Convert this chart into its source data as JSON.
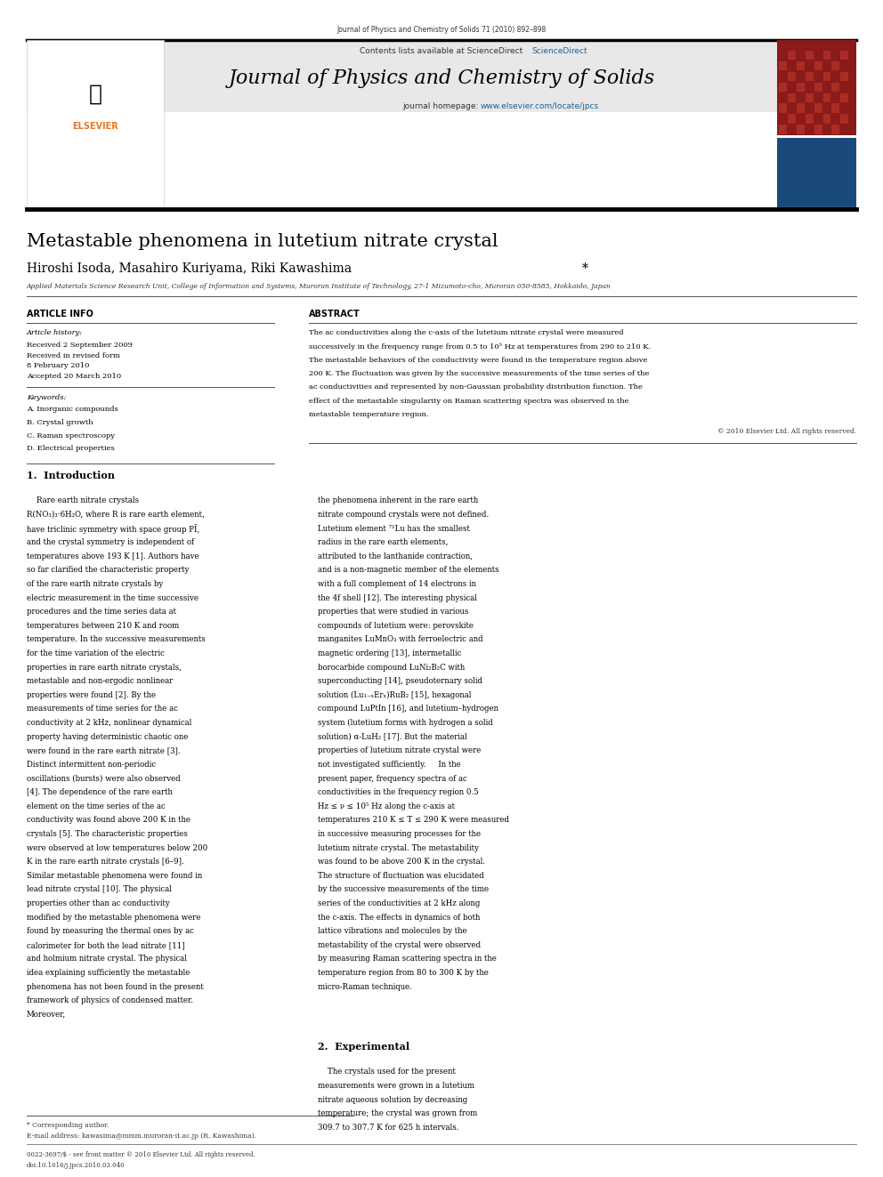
{
  "page_width": 9.92,
  "page_height": 13.23,
  "bg_color": "#ffffff",
  "top_journal_ref": "Journal of Physics and Chemistry of Solids 71 (2010) 892–898",
  "header_bg": "#e8e8e8",
  "header_contents": "Contents lists available at ScienceDirect",
  "sciencedirect_color": "#1a6496",
  "journal_title": "Journal of Physics and Chemistry of Solids",
  "journal_homepage": "journal homepage: www.elsevier.com/locate/jpcs",
  "homepage_color": "#1a6496",
  "divider_color": "#000000",
  "article_title": "Metastable phenomena in lutetium nitrate crystal",
  "authors": "Hiroshi Isoda, Masahiro Kuriyama, Riki Kawashima*",
  "affiliation": "Applied Materials Science Research Unit, College of Information and Systems, Muroran Institute of Technology, 27-1 Mizumoto-cho, Muroran 050-8585, Hokkaido, Japan",
  "article_info_label": "ARTICLE INFO",
  "abstract_label": "ABSTRACT",
  "article_history_label": "Article history:",
  "received1": "Received 2 September 2009",
  "received2": "Received in revised form",
  "date2": "8 February 2010",
  "accepted": "Accepted 20 March 2010",
  "keywords_label": "Keywords:",
  "keywords": [
    "A. Inorganic compounds",
    "B. Crystal growth",
    "C. Raman spectroscopy",
    "D. Electrical properties"
  ],
  "abstract_text": "The ac conductivities along the c-axis of the lutetium nitrate crystal were measured successively in the frequency range from 0.5 to 10⁵ Hz at temperatures from 290 to 210 K. The metastable behaviors of the conductivity were found in the temperature region above 200 K. The fluctuation was given by the successive measurements of the time series of the ac conductivities and represented by non-Gaussian probability distribution function. The effect of the metastable singularity on Raman scattering spectra was observed in the metastable temperature region.",
  "copyright": "© 2010 Elsevier Ltd. All rights reserved.",
  "section1_title": "1.  Introduction",
  "intro_left": "    Rare earth nitrate crystals R(NO₃)₃·6H₂O, where R is rare earth element, have triclinic symmetry with space group PĪ, and the crystal symmetry is independent of temperatures above 193 K [1]. Authors have so far clarified the characteristic property of the rare earth nitrate crystals by electric measurement in the time successive procedures and the time series data at temperatures between 210 K and room temperature. In the successive measurements for the time variation of the electric properties in rare earth nitrate crystals, metastable and non-ergodic nonlinear properties were found [2]. By the measurements of time series for the ac conductivity at 2 kHz, nonlinear dynamical property having deterministic chaotic one were found in the rare earth nitrate [3]. Distinct intermittent non-periodic oscillations (bursts) were also observed [4]. The dependence of the rare earth element on the time series of the ac conductivity was found above 200 K in the crystals [5]. The characteristic properties were observed at low temperatures below 200 K in the rare earth nitrate crystals [6–9].\n    Similar metastable phenomena were found in lead nitrate crystal [10]. The physical properties other than ac conductivity modified by the metastable phenomena were found by measuring the thermal ones by ac calorimeter for both the lead nitrate [11] and holmium nitrate crystal. The physical idea explaining sufficiently the metastable phenomena has not been found in the present framework of physics of condensed matter. Moreover,",
  "intro_right": "the phenomena inherent in the rare earth nitrate compound crystals were not defined.\n    Lutetium element ⁷¹Lu has the smallest radius in the rare earth elements, attributed to the lanthanide contraction, and is a non-magnetic member of the elements with a full complement of 14 electrons in the 4f shell [12]. The interesting physical properties that were studied in various compounds of lutetium were: perovskite manganites LuMnO₃ with ferroelectric and magnetic ordering [13], intermetallic borocarbide compound LuNi₂B₂C with superconducting [14], pseudoternary solid solution (Lu₁₋ₓErₓ)RuB₂ [15], hexagonal compound LuPtIn [16], and lutetium–hydrogen system (lutetium forms with hydrogen a solid solution) α-LuH₂ [17]. But the material properties of lutetium nitrate crystal were not investigated sufficiently.\n    In the present paper, frequency spectra of ac conductivities in the frequency region 0.5 Hz ≤ ν ≤ 10⁵ Hz along the c-axis at temperatures 210 K ≤ T ≤ 290 K were measured in successive measuring processes for the lutetium nitrate crystal. The metastability was found to be above 200 K in the crystal. The structure of fluctuation was elucidated by the successive measurements of the time series of the conductivities at 2 kHz along the c-axis. The effects in dynamics of both lattice vibrations and molecules by the metastability of the crystal were observed by measuring Raman scattering spectra in the temperature region from 80 to 300 K by the micro-Raman technique.",
  "section2_title": "2.  Experimental",
  "section2_text": "    The crystals used for the present measurements were grown in a lutetium nitrate aqueous solution by decreasing temperature; the crystal was grown from 309.7 to 307.7 K for 625 h intervals.",
  "footnote_star": "* Corresponding author.",
  "footnote_email": "E-mail address: kawasima@mmm.muroran-it.ac.jp (R. Kawashima).",
  "footer_line1": "0022-3697/$ - see front matter © 2010 Elsevier Ltd. All rights reserved.",
  "footer_line2": "doi:10.1016/j.jpcs.2010.03.040"
}
